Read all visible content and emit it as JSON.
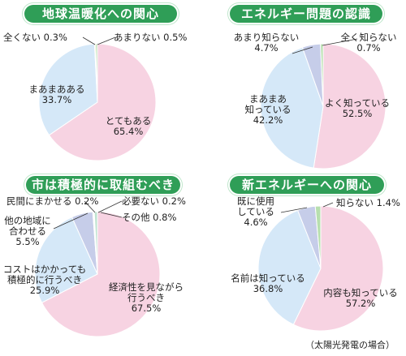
{
  "colors": {
    "title_bg": "#2f9e57",
    "slice_pink": "#f7d3e2",
    "slice_blue": "#d5e8f8",
    "slice_lavender": "#c6cde9",
    "slice_green": "#b7dfae",
    "slice_yellow": "#f3e7a0",
    "leader": "#333333"
  },
  "footnote": "（太陽光発電の場合）",
  "chart_data": [
    {
      "type": "pie",
      "title": "地球温暖化への関心",
      "slices": [
        {
          "label": "とてもある",
          "value": 65.4,
          "color": "#f7d3e2"
        },
        {
          "label": "まあまあある",
          "value": 33.7,
          "color": "#d5e8f8"
        },
        {
          "label": "全くない",
          "value": 0.3,
          "color": "#f3e7a0"
        },
        {
          "label": "あまりない",
          "value": 0.5,
          "color": "#b7dfae"
        }
      ],
      "labels": {
        "s0": {
          "name": "とてもある",
          "pct": "65.4%"
        },
        "s1": {
          "name": "まあまあある",
          "pct": "33.7%"
        },
        "s2": "全くない 0.3%",
        "s3": "あまりない 0.5%"
      }
    },
    {
      "type": "pie",
      "title": "エネルギー問題の認識",
      "slices": [
        {
          "label": "よく知っている",
          "value": 52.5,
          "color": "#f7d3e2"
        },
        {
          "label": "まあまあ知っている",
          "value": 42.2,
          "color": "#d5e8f8"
        },
        {
          "label": "あまり知らない",
          "value": 4.7,
          "color": "#c6cde9"
        },
        {
          "label": "全く知らない",
          "value": 0.7,
          "color": "#b7dfae"
        }
      ],
      "labels": {
        "s0": {
          "name": "よく知っている",
          "pct": "52.5%"
        },
        "s1": {
          "l1": "まあまあ",
          "l2": "知っている",
          "pct": "42.2%"
        },
        "s2": {
          "name": "あまり知らない",
          "pct": "4.7%"
        },
        "s3": {
          "name": "全く知らない",
          "pct": "0.7%"
        }
      }
    },
    {
      "type": "pie",
      "title": "市は積極的に取組むべき",
      "slices": [
        {
          "label": "経済性を見ながら行うべき",
          "value": 67.5,
          "color": "#f7d3e2"
        },
        {
          "label": "コストはかかっても積極的に行うべき",
          "value": 25.9,
          "color": "#d5e8f8"
        },
        {
          "label": "他の地域に合わせる",
          "value": 5.5,
          "color": "#c6cde9"
        },
        {
          "label": "民間にまかせる",
          "value": 0.2,
          "color": "#f3e7a0"
        },
        {
          "label": "必要ない",
          "value": 0.2,
          "color": "#b7dfae"
        },
        {
          "label": "その他",
          "value": 0.8,
          "color": "#bfe3d0"
        }
      ],
      "labels": {
        "s0": {
          "l1": "経済性を見ながら",
          "l2": "行うべき",
          "pct": "67.5%"
        },
        "s1": {
          "l1": "コストはかかっても",
          "l2": "積極的に行うべき",
          "pct": "25.9%"
        },
        "s2": {
          "l1": "他の地域に",
          "l2": "合わせる",
          "pct": "5.5%"
        },
        "s3": "民間にまかせる 0.2%",
        "s4": "必要ない 0.2%",
        "s5": "その他 0.8%"
      }
    },
    {
      "type": "pie",
      "title": "新エネルギーへの関心",
      "slices": [
        {
          "label": "内容も知っている",
          "value": 57.2,
          "color": "#f7d3e2"
        },
        {
          "label": "名前は知っている",
          "value": 36.8,
          "color": "#d5e8f8"
        },
        {
          "label": "既に使用している",
          "value": 4.6,
          "color": "#c6cde9"
        },
        {
          "label": "知らない",
          "value": 1.4,
          "color": "#b7dfae"
        }
      ],
      "labels": {
        "s0": {
          "name": "内容も知っている",
          "pct": "57.2%"
        },
        "s1": {
          "name": "名前は知っている",
          "pct": "36.8%"
        },
        "s2": {
          "l1": "既に使用",
          "l2": "している",
          "pct": "4.6%"
        },
        "s3": "知らない 1.4%"
      }
    }
  ]
}
